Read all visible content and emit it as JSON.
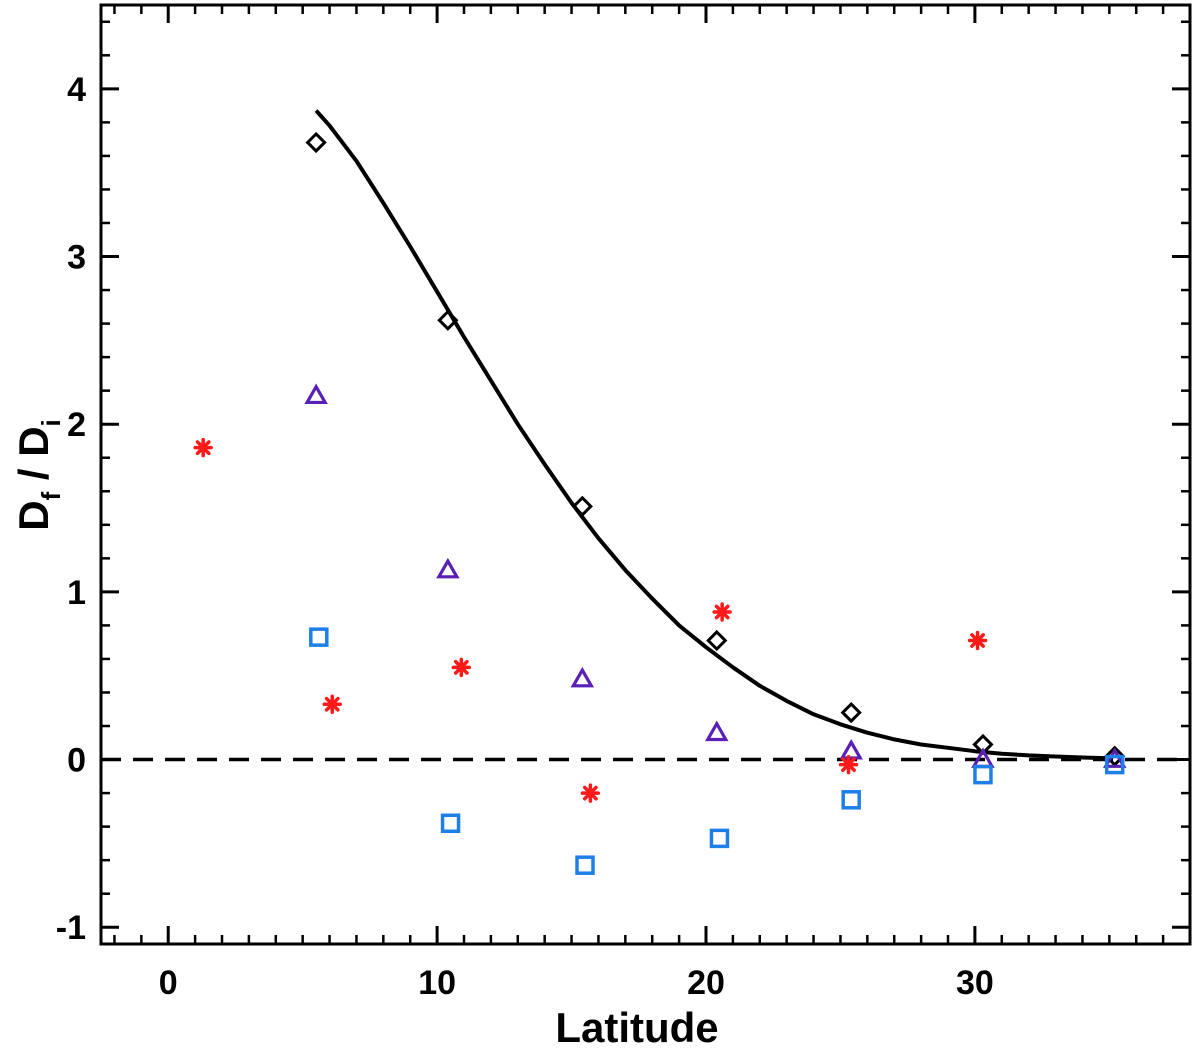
{
  "chart_data": {
    "type": "scatter",
    "title": "",
    "xlabel": "Latitude",
    "ylabel": {
      "d1": "D",
      "s1": "f",
      "slash": " / ",
      "d2": "D",
      "s2": "i"
    },
    "xlim": [
      -2.5,
      38
    ],
    "ylim": [
      -1.1,
      4.5
    ],
    "xticks": [
      0,
      10,
      20,
      30
    ],
    "xtick_labels": [
      "0",
      "10",
      "20",
      "30"
    ],
    "yticks": [
      -1,
      0,
      1,
      2,
      3,
      4
    ],
    "ytick_labels": [
      "-1",
      "0",
      "1",
      "2",
      "3",
      "4"
    ],
    "x_minor_step": 1,
    "y_minor_step": 0.2,
    "reference_line": {
      "y": 0,
      "style": "dashed",
      "color": "#000000"
    },
    "series": [
      {
        "name": "diamonds",
        "marker": "diamond",
        "color": "#000000",
        "points": [
          [
            5.5,
            3.68
          ],
          [
            10.4,
            2.62
          ],
          [
            15.4,
            1.51
          ],
          [
            20.4,
            0.71
          ],
          [
            25.4,
            0.28
          ],
          [
            30.3,
            0.09
          ],
          [
            35.2,
            0.02
          ]
        ]
      },
      {
        "name": "triangles",
        "marker": "triangle",
        "color": "#5a1fb4",
        "points": [
          [
            5.5,
            2.17
          ],
          [
            10.4,
            1.13
          ],
          [
            15.4,
            0.48
          ],
          [
            20.4,
            0.16
          ],
          [
            25.4,
            0.05
          ],
          [
            30.3,
            0.0
          ],
          [
            35.2,
            0.0
          ]
        ]
      },
      {
        "name": "squares",
        "marker": "square",
        "color": "#1f7fe8",
        "points": [
          [
            5.6,
            0.73
          ],
          [
            10.5,
            -0.38
          ],
          [
            15.5,
            -0.63
          ],
          [
            20.5,
            -0.47
          ],
          [
            25.4,
            -0.24
          ],
          [
            30.3,
            -0.09
          ],
          [
            35.2,
            -0.03
          ]
        ]
      },
      {
        "name": "asterisks",
        "marker": "asterisk",
        "color": "#ff1a1a",
        "points": [
          [
            1.3,
            1.86
          ],
          [
            6.1,
            0.33
          ],
          [
            10.9,
            0.55
          ],
          [
            15.7,
            -0.2
          ],
          [
            20.6,
            0.88
          ],
          [
            25.3,
            -0.03
          ],
          [
            30.1,
            0.71
          ]
        ]
      },
      {
        "name": "fit",
        "type": "line",
        "color": "#000000",
        "x": [
          5.5,
          6,
          7,
          8,
          9,
          10,
          11,
          12,
          13,
          14,
          15,
          16,
          17,
          18,
          19,
          20,
          21,
          22,
          23,
          24,
          25,
          26,
          27,
          28,
          29,
          30,
          31,
          32,
          33,
          34,
          35
        ],
        "y": [
          3.87,
          3.78,
          3.57,
          3.32,
          3.06,
          2.79,
          2.52,
          2.26,
          2.0,
          1.76,
          1.53,
          1.32,
          1.13,
          0.96,
          0.8,
          0.67,
          0.55,
          0.44,
          0.35,
          0.27,
          0.21,
          0.16,
          0.12,
          0.09,
          0.07,
          0.05,
          0.035,
          0.025,
          0.018,
          0.012,
          0.008
        ]
      }
    ]
  }
}
